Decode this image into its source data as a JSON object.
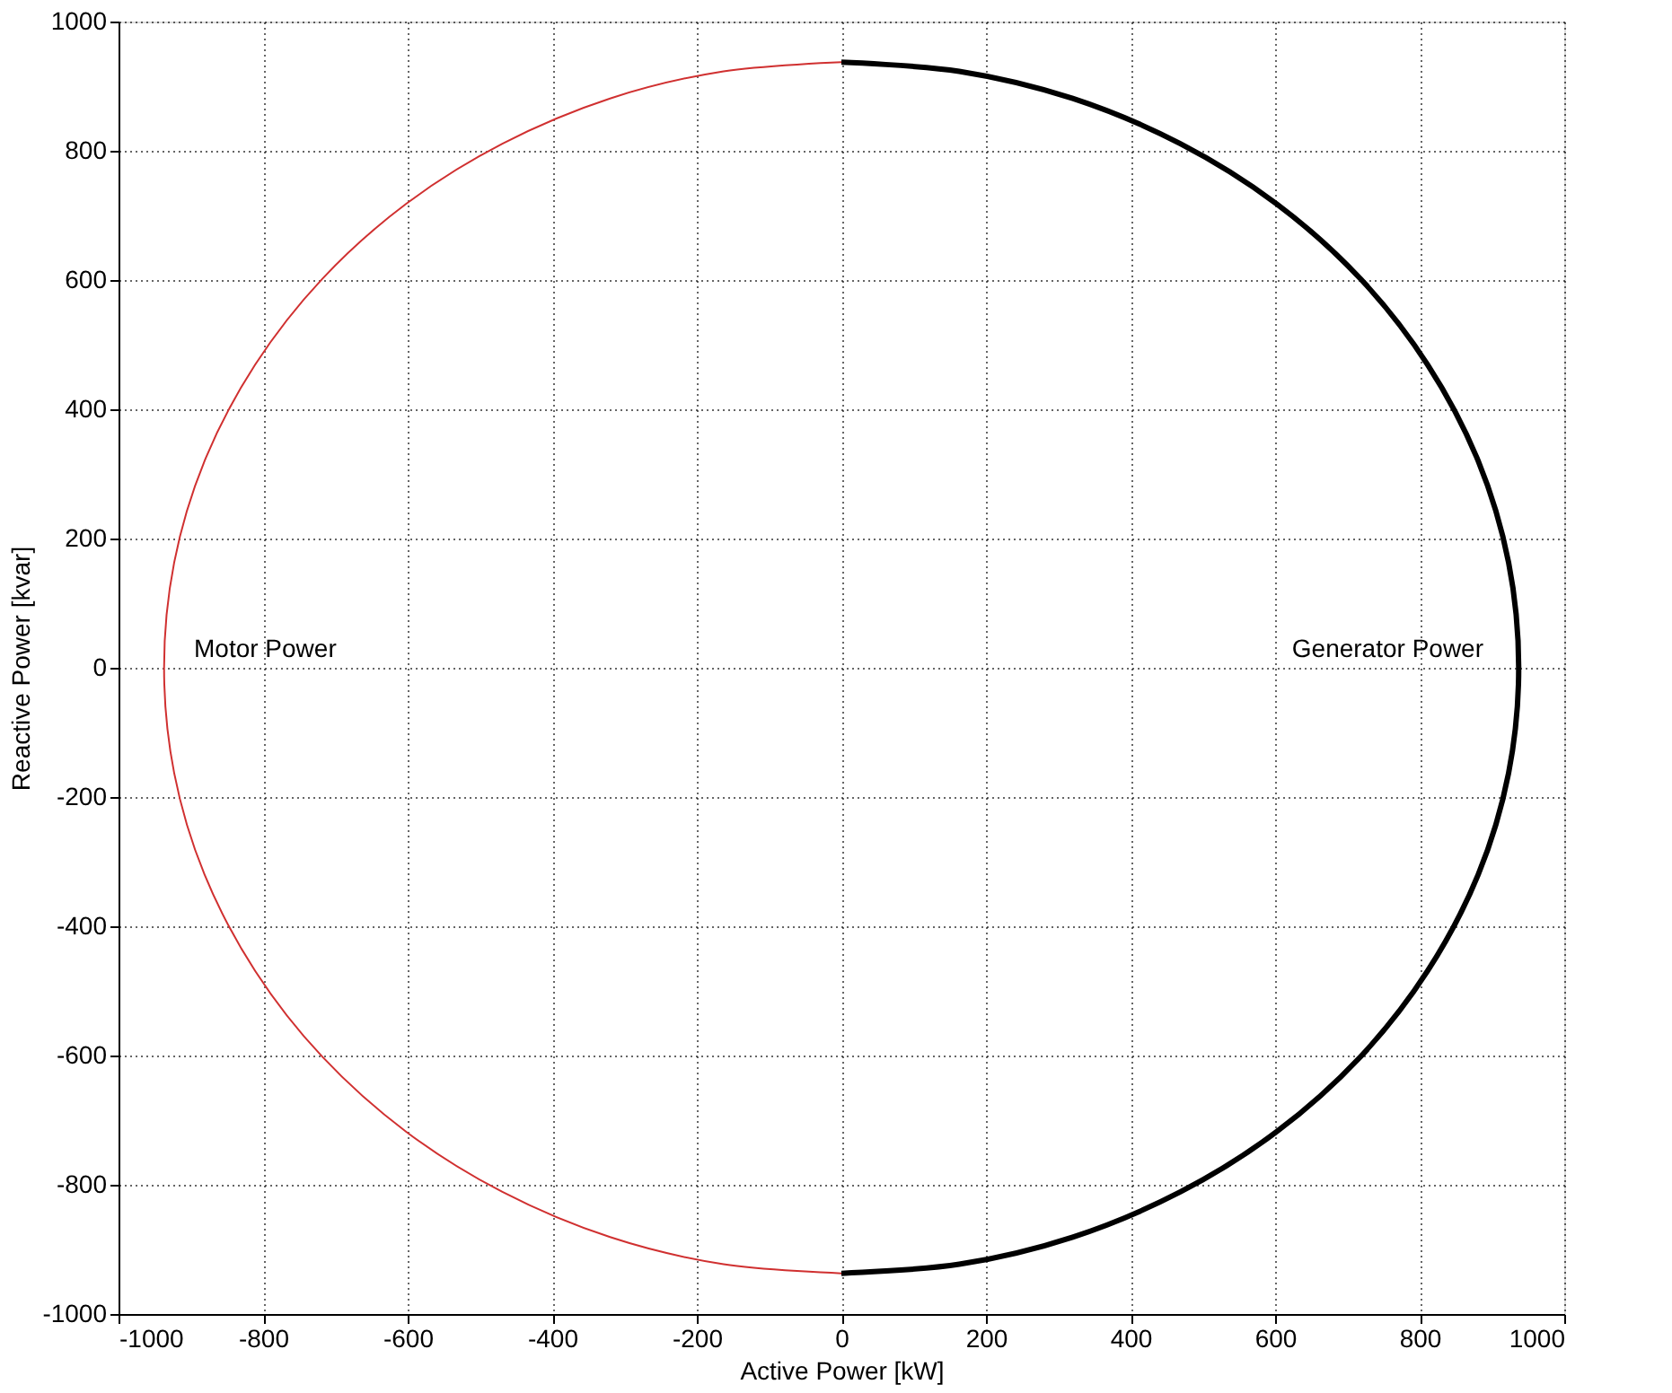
{
  "chart_data": {
    "type": "line",
    "xlabel": "Active Power [kW]",
    "ylabel": "Reactive Power [kvar]",
    "xlim": [
      -1000,
      1000
    ],
    "ylim": [
      -1000,
      1000
    ],
    "xticks": [
      -1000,
      -800,
      -600,
      -400,
      -200,
      0,
      200,
      400,
      600,
      800,
      1000
    ],
    "yticks": [
      -1000,
      -800,
      -600,
      -400,
      -200,
      0,
      200,
      400,
      600,
      800,
      1000
    ],
    "grid": true,
    "line_style": "solid",
    "marker": "none",
    "series": [
      {
        "color": "#d03030",
        "x": [
          0,
          -163,
          -320,
          -469,
          -602,
          -718,
          -811,
          -881,
          -923,
          -937,
          -923,
          -881,
          -811,
          -718,
          -602,
          -469,
          -320,
          -163,
          0
        ],
        "values": [
          937,
          923,
          881,
          811,
          718,
          602,
          469,
          320,
          163,
          0,
          -163,
          -320,
          -469,
          -602,
          -718,
          -811,
          -881,
          -923,
          -937
        ]
      },
      {
        "color": "#000000",
        "x": [
          0,
          163,
          320,
          469,
          602,
          718,
          811,
          881,
          923,
          937,
          923,
          881,
          811,
          718,
          602,
          469,
          320,
          163,
          0
        ],
        "values": [
          937,
          923,
          881,
          811,
          718,
          602,
          469,
          320,
          163,
          0,
          -163,
          -320,
          -469,
          -602,
          -718,
          -811,
          -881,
          -923,
          -937
        ]
      }
    ],
    "annotations": [
      "Motor Power",
      "Generator Power"
    ]
  }
}
